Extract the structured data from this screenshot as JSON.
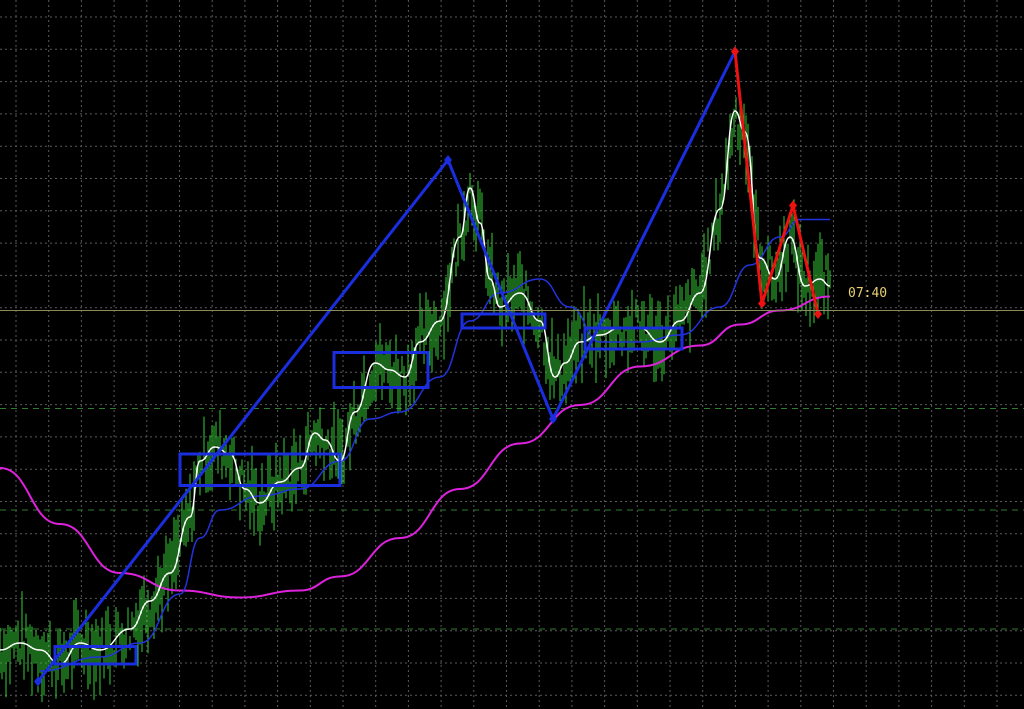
{
  "chart_data": {
    "type": "line",
    "title": "",
    "xlabel": "",
    "ylabel": "",
    "grid": true,
    "current_time_label": "07:40",
    "colors": {
      "background": "#000000",
      "grid": "#5a5a5a",
      "price_bars": "#33cc33",
      "ma_fast": "#ffffff",
      "ma_mid": "#2233dd",
      "ma_slow": "#dd22dd",
      "current_price_line": "#8a8a5a",
      "level_lines": "#2e7d2e",
      "pattern_blue": "#1a2ee0",
      "pattern_red": "#ee1111"
    },
    "x_range": [
      0,
      830
    ],
    "y_range": [
      0,
      100
    ],
    "current_price": 59.5,
    "level_lines": [
      45.5,
      31.0,
      14.0
    ],
    "ma_slow": {
      "x": [
        0,
        60,
        120,
        180,
        240,
        300,
        340,
        400,
        460,
        520,
        580,
        640,
        700,
        740,
        780,
        830
      ],
      "y": [
        37,
        29,
        22,
        19.5,
        18.5,
        19.5,
        21.5,
        27,
        34,
        40.5,
        46,
        51.5,
        54.5,
        57.5,
        59.5,
        61.5
      ]
    },
    "ma_mid": {
      "x": [
        40,
        100,
        140,
        180,
        200,
        220,
        260,
        300,
        340,
        370,
        400,
        440,
        470,
        500,
        540,
        570,
        600,
        640,
        680,
        720,
        750,
        780,
        800,
        830
      ],
      "y": [
        8,
        10,
        12,
        19,
        27,
        31,
        33,
        34,
        38,
        44,
        45,
        50,
        58,
        62,
        64,
        60,
        55,
        55,
        56,
        60,
        66,
        70,
        72.5,
        72.5
      ]
    },
    "ma_fast": {
      "x": [
        0,
        20,
        40,
        60,
        80,
        100,
        130,
        150,
        170,
        190,
        200,
        215,
        230,
        245,
        260,
        280,
        300,
        315,
        325,
        340,
        355,
        375,
        390,
        405,
        420,
        440,
        460,
        470,
        480,
        490,
        500,
        520,
        540,
        555,
        565,
        580,
        600,
        620,
        640,
        660,
        680,
        700,
        720,
        735,
        745,
        760,
        775,
        790,
        805,
        820,
        830
      ],
      "y": [
        11,
        12,
        11,
        9,
        12,
        11,
        14,
        18,
        22,
        30,
        38,
        40,
        39,
        34,
        32,
        35,
        37,
        42,
        41,
        38,
        45,
        52,
        51,
        50,
        55,
        58,
        70,
        77,
        72,
        64,
        60,
        62,
        58,
        50,
        52,
        55,
        56,
        57,
        57,
        55,
        58,
        62,
        74,
        88,
        85,
        67,
        64,
        70,
        63,
        64,
        63
      ]
    },
    "price_bars_color": "#33cc33",
    "patterns_blue": {
      "zigzag": {
        "x": [
          38,
          448,
          553,
          735
        ],
        "y": [
          6.5,
          81,
          44,
          96.5
        ]
      },
      "rectangles": [
        {
          "x0": 55,
          "x1": 136,
          "y0": 9.0,
          "y1": 11.5
        },
        {
          "x0": 180,
          "x1": 340,
          "y0": 34.5,
          "y1": 39.0
        },
        {
          "x0": 334,
          "x1": 428,
          "y0": 48.5,
          "y1": 53.5
        },
        {
          "x0": 462,
          "x1": 545,
          "y0": 57.0,
          "y1": 59.0
        },
        {
          "x0": 585,
          "x1": 682,
          "y0": 54.0,
          "y1": 57.0
        }
      ]
    },
    "pattern_red": {
      "x": [
        735,
        762,
        793,
        818
      ],
      "y": [
        96.5,
        60.5,
        74.5,
        59
      ]
    }
  }
}
